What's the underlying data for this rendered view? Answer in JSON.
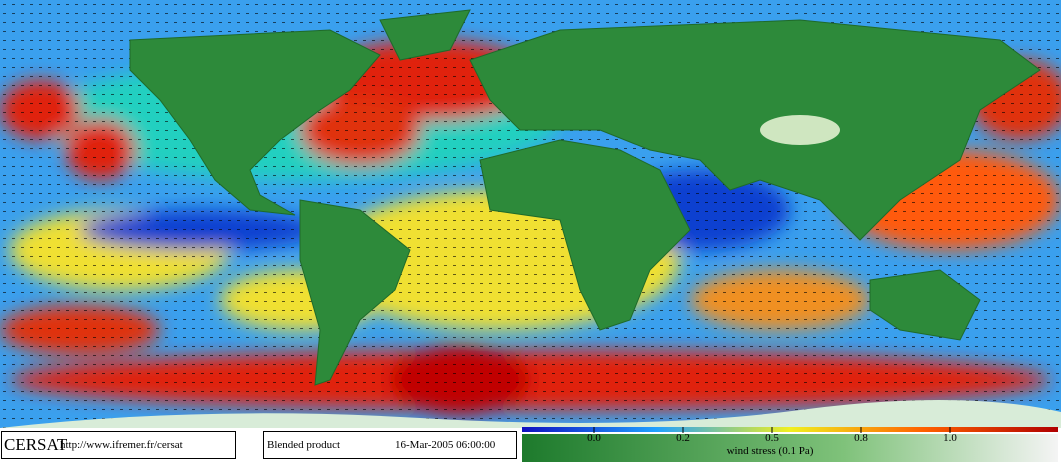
{
  "footer": {
    "brand": "CERSAT",
    "url": "http://www.ifremer.fr/cersat",
    "product": "Blended product",
    "timestamp": "16-Mar-2005 06:00:00"
  },
  "colorbar": {
    "label": "wind stress (0.1 Pa)",
    "ticks": [
      {
        "value": 0,
        "label": "0.0"
      },
      0.2,
      0.5,
      0.8,
      {
        "value": 1,
        "label": "1.0"
      }
    ]
  }
}
